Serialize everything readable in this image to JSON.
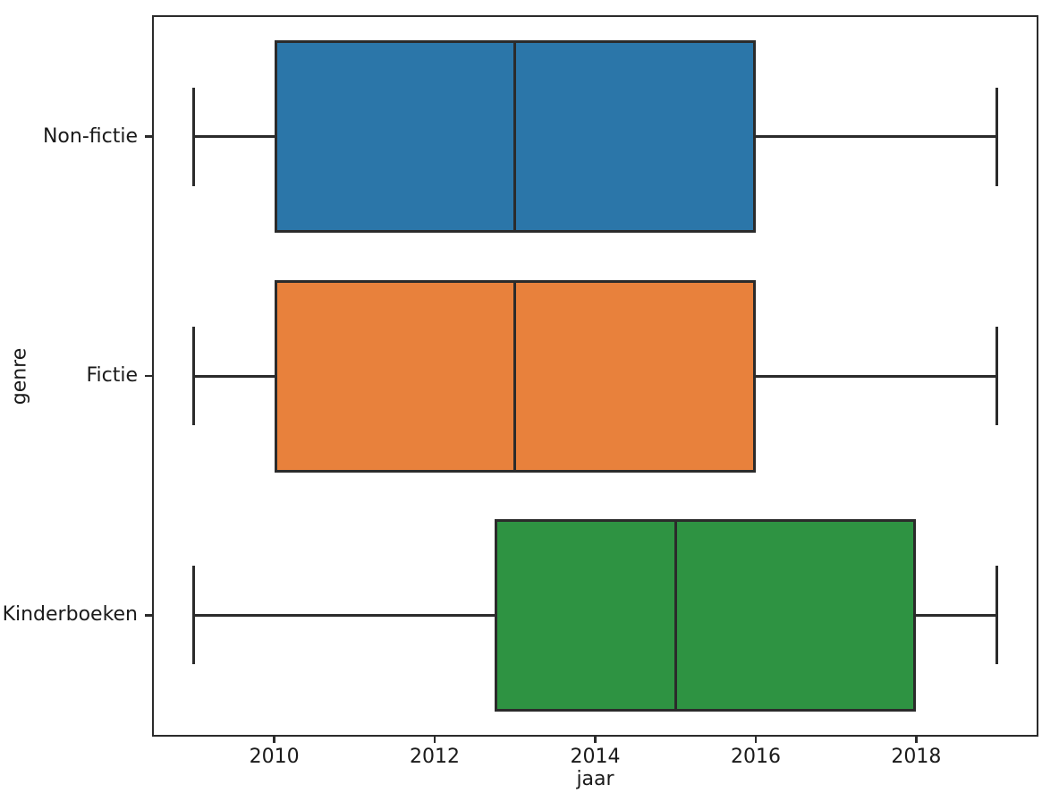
{
  "chart_data": {
    "type": "boxplot",
    "orientation": "horizontal",
    "title": "",
    "xlabel": "jaar",
    "ylabel": "genre",
    "xlim": [
      2008.5,
      2019.5
    ],
    "x_ticks": [
      2010,
      2012,
      2014,
      2016,
      2018
    ],
    "grid": false,
    "legend": null,
    "line_color": "#2b2b2b",
    "series": [
      {
        "name": "Non-fictie",
        "color": "#2b76a9",
        "whisker_low": 2009,
        "q1": 2010,
        "median": 2013,
        "q3": 2016,
        "whisker_high": 2019
      },
      {
        "name": "Fictie",
        "color": "#e8813c",
        "whisker_low": 2009,
        "q1": 2010,
        "median": 2013,
        "q3": 2016,
        "whisker_high": 2019
      },
      {
        "name": "Kinderboeken",
        "color": "#2e9342",
        "whisker_low": 2009,
        "q1": 2012.75,
        "median": 2015,
        "q3": 2018,
        "whisker_high": 2019
      }
    ]
  }
}
